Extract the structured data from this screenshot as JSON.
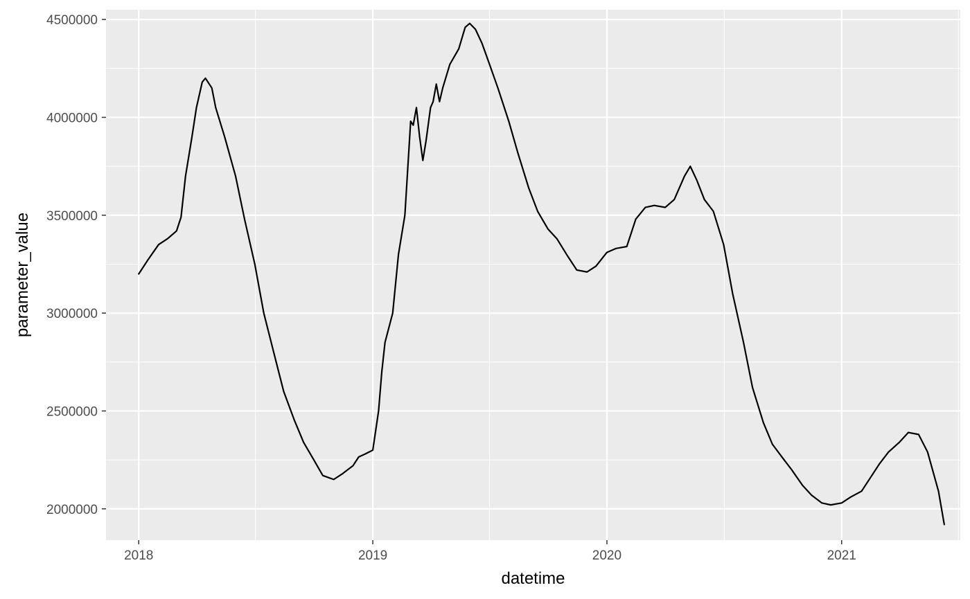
{
  "chart_data": {
    "type": "line",
    "title": "",
    "xlabel": "datetime",
    "ylabel": "parameter_value",
    "xlim": [
      "2017-11-11",
      "2021-07-05"
    ],
    "ylim": [
      1840000,
      4550000
    ],
    "grid": true,
    "panel_background": "#EBEBEB",
    "line_color": "#000000",
    "x_ticks": [
      "2018-01-01",
      "2019-01-01",
      "2020-01-01",
      "2021-01-01"
    ],
    "x_tick_labels": [
      "2018",
      "2019",
      "2020",
      "2021"
    ],
    "y_ticks": [
      2000000,
      2500000,
      3000000,
      3500000,
      4000000,
      4500000
    ],
    "y_tick_labels": [
      "2000000",
      "2500000",
      "3000000",
      "3500000",
      "4000000",
      "4500000"
    ],
    "series": [
      {
        "x": [
          "2018-01-01",
          "2018-01-15",
          "2018-02-01",
          "2018-02-15",
          "2018-03-01",
          "2018-03-08",
          "2018-03-15",
          "2018-03-25",
          "2018-04-01",
          "2018-04-10",
          "2018-04-15",
          "2018-04-25",
          "2018-05-01",
          "2018-05-15",
          "2018-06-01",
          "2018-06-15",
          "2018-07-01",
          "2018-07-15",
          "2018-08-01",
          "2018-08-15",
          "2018-09-01",
          "2018-09-15",
          "2018-10-01",
          "2018-10-15",
          "2018-11-01",
          "2018-11-15",
          "2018-12-01",
          "2018-12-10",
          "2018-12-20",
          "2019-01-01",
          "2019-01-10",
          "2019-01-15",
          "2019-01-20",
          "2019-02-01",
          "2019-02-10",
          "2019-02-20",
          "2019-03-01",
          "2019-03-05",
          "2019-03-10",
          "2019-03-15",
          "2019-03-20",
          "2019-03-25",
          "2019-04-01",
          "2019-04-05",
          "2019-04-10",
          "2019-04-15",
          "2019-04-20",
          "2019-05-01",
          "2019-05-15",
          "2019-05-25",
          "2019-06-01",
          "2019-06-10",
          "2019-06-20",
          "2019-07-01",
          "2019-07-15",
          "2019-08-01",
          "2019-08-15",
          "2019-09-01",
          "2019-09-15",
          "2019-10-01",
          "2019-10-15",
          "2019-11-01",
          "2019-11-15",
          "2019-12-01",
          "2019-12-15",
          "2020-01-01",
          "2020-01-15",
          "2020-02-01",
          "2020-02-15",
          "2020-03-01",
          "2020-03-15",
          "2020-04-01",
          "2020-04-15",
          "2020-05-01",
          "2020-05-10",
          "2020-05-20",
          "2020-06-01",
          "2020-06-15",
          "2020-07-01",
          "2020-07-15",
          "2020-08-01",
          "2020-08-15",
          "2020-09-01",
          "2020-09-15",
          "2020-10-01",
          "2020-10-15",
          "2020-11-01",
          "2020-11-15",
          "2020-12-01",
          "2020-12-15",
          "2021-01-01",
          "2021-01-15",
          "2021-02-01",
          "2021-02-15",
          "2021-03-01",
          "2021-03-15",
          "2021-04-01",
          "2021-04-15",
          "2021-05-01",
          "2021-05-15",
          "2021-06-01",
          "2021-06-10"
        ],
        "y": [
          3200000,
          3270000,
          3350000,
          3380000,
          3420000,
          3490000,
          3700000,
          3900000,
          4050000,
          4180000,
          4200000,
          4150000,
          4050000,
          3900000,
          3700000,
          3480000,
          3250000,
          3000000,
          2780000,
          2600000,
          2450000,
          2340000,
          2250000,
          2170000,
          2150000,
          2180000,
          2220000,
          2265000,
          2280000,
          2300000,
          2500000,
          2700000,
          2850000,
          3000000,
          3300000,
          3500000,
          3980000,
          3960000,
          4050000,
          3900000,
          3780000,
          3880000,
          4050000,
          4080000,
          4170000,
          4080000,
          4150000,
          4270000,
          4350000,
          4460000,
          4480000,
          4450000,
          4380000,
          4280000,
          4150000,
          3980000,
          3820000,
          3640000,
          3520000,
          3430000,
          3380000,
          3290000,
          3220000,
          3210000,
          3240000,
          3310000,
          3330000,
          3340000,
          3480000,
          3540000,
          3550000,
          3540000,
          3580000,
          3700000,
          3750000,
          3680000,
          3580000,
          3520000,
          3350000,
          3100000,
          2850000,
          2620000,
          2440000,
          2330000,
          2260000,
          2200000,
          2120000,
          2070000,
          2030000,
          2020000,
          2030000,
          2060000,
          2090000,
          2160000,
          2230000,
          2290000,
          2340000,
          2390000,
          2380000,
          2290000,
          2090000,
          1920000
        ]
      }
    ]
  }
}
